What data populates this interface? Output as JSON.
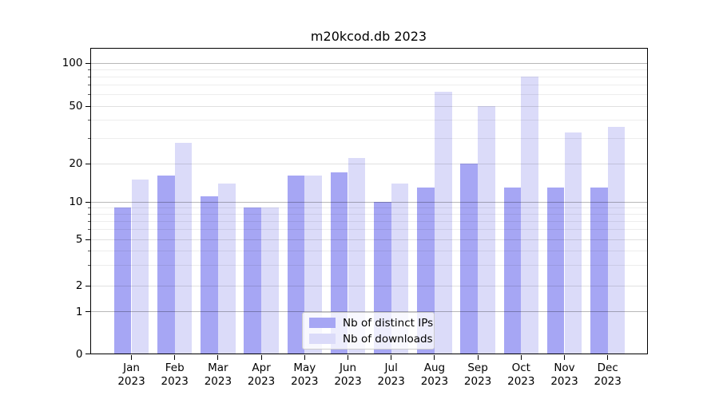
{
  "chart_data": {
    "type": "bar",
    "title": "m20kcod.db 2023",
    "categories": [
      "Jan",
      "Feb",
      "Mar",
      "Apr",
      "May",
      "Jun",
      "Jul",
      "Aug",
      "Sep",
      "Oct",
      "Nov",
      "Dec"
    ],
    "tick_year": "2023",
    "series": [
      {
        "name": "Nb of distinct IPs",
        "color": "#a6a6f4",
        "values": [
          9,
          16,
          11,
          9,
          16,
          17,
          10,
          13,
          20,
          13,
          13,
          13
        ]
      },
      {
        "name": "Nb of downloads",
        "color": "#dbdbf9",
        "values": [
          15,
          28,
          14,
          9,
          16,
          22,
          14,
          63,
          50,
          80,
          33,
          36
        ]
      }
    ],
    "ylabel": "",
    "xlabel": "",
    "yticks": [
      0,
      1,
      2,
      5,
      10,
      20,
      50,
      100
    ],
    "yscale": "symlog",
    "ylim": [
      0,
      126
    ],
    "grid": true,
    "grid_minor_values": [
      3,
      4,
      6,
      7,
      8,
      9,
      30,
      40,
      60,
      70,
      80,
      90
    ],
    "grid_mid_values": [
      2,
      5,
      20,
      50
    ],
    "grid_major_values": [
      1,
      10,
      100
    ],
    "legend_position": "lower-center"
  }
}
